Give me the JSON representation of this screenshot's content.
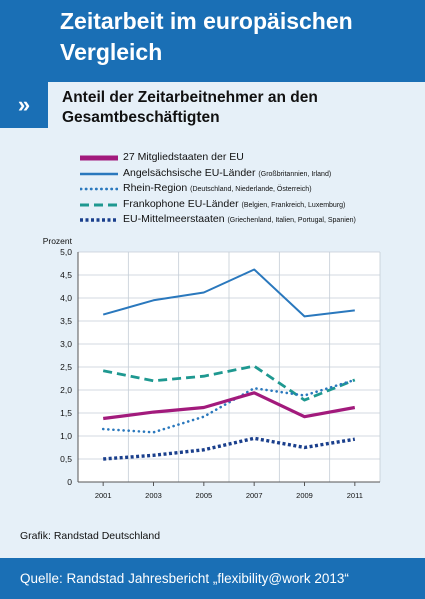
{
  "header": {
    "title": "Zeitarbeit im europäischen Vergleich"
  },
  "nav_icon": "»",
  "subtitle": "Anteil der Zeitarbeitnehmer an den Gesamtbeschäftigten",
  "chart_data": {
    "type": "line",
    "title": "",
    "xlabel": "",
    "ylabel": "Prozent",
    "x": [
      "2001",
      "2003",
      "2005",
      "2007",
      "2009",
      "2011"
    ],
    "ylim": [
      0,
      5
    ],
    "yticks": [
      "0",
      "0,5",
      "1,0",
      "1,5",
      "2,0",
      "2,5",
      "3,0",
      "3,5",
      "4,0",
      "4,5",
      "5,0"
    ],
    "grid": true,
    "series": [
      {
        "name": "27 Mitgliedstaaten der EU",
        "note": "",
        "color": "#a21a7c",
        "style": "thick-solid",
        "values": [
          1.38,
          1.52,
          1.62,
          1.94,
          1.42,
          1.62
        ]
      },
      {
        "name": "Angelsächsische EU-Länder",
        "note": "(Großbritannien, Irland)",
        "color": "#2a78bd",
        "style": "solid",
        "values": [
          3.64,
          3.95,
          4.12,
          4.62,
          3.6,
          3.73
        ]
      },
      {
        "name": "Rhein-Region",
        "note": "(Deutschland, Niederlande, Österreich)",
        "color": "#2a78bd",
        "style": "dotted",
        "values": [
          1.15,
          1.08,
          1.42,
          2.04,
          1.88,
          2.22
        ]
      },
      {
        "name": "Frankophone EU-Länder",
        "note": "(Belgien, Frankreich, Luxemburg)",
        "color": "#1e9890",
        "style": "dashed",
        "values": [
          2.42,
          2.2,
          2.3,
          2.52,
          1.78,
          2.22
        ]
      },
      {
        "name": "EU-Mittelmeerstaaten",
        "note": "(Griechenland, Italien, Portugal, Spanien)",
        "color": "#1a3f8c",
        "style": "thick-dotted",
        "values": [
          0.5,
          0.58,
          0.7,
          0.95,
          0.75,
          0.93
        ]
      }
    ]
  },
  "source_small": "Grafik: Randstad Deutschland",
  "footer": {
    "text": "Quelle: Randstad Jahresbericht „flexibility@work 2013“"
  }
}
